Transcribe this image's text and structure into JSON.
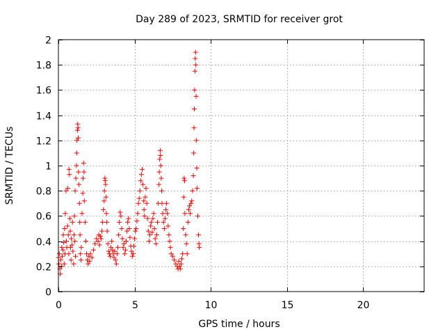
{
  "chart_data": {
    "type": "scatter",
    "title": "Day 289 of 2023, SRMTID for receiver grot",
    "xlabel": "GPS time / hours",
    "ylabel": "SRMTID / TECUs",
    "xlim": [
      0,
      24
    ],
    "ylim": [
      0,
      2
    ],
    "xticks": [
      0,
      5,
      10,
      15,
      20
    ],
    "yticks": [
      0,
      0.2,
      0.4,
      0.6,
      0.8,
      1,
      1.2,
      1.4,
      1.6,
      1.8,
      2
    ],
    "grid": true,
    "marker": "+",
    "series_color": "#ff0000",
    "series": [
      {
        "name": "SRMTID",
        "points": [
          [
            0.0,
            0.27
          ],
          [
            0.03,
            0.22
          ],
          [
            0.06,
            0.3
          ],
          [
            0.1,
            0.18
          ],
          [
            0.12,
            0.14
          ],
          [
            0.15,
            0.25
          ],
          [
            0.2,
            0.2
          ],
          [
            0.22,
            0.35
          ],
          [
            0.25,
            0.28
          ],
          [
            0.3,
            0.33
          ],
          [
            0.32,
            0.45
          ],
          [
            0.35,
            0.39
          ],
          [
            0.38,
            0.22
          ],
          [
            0.4,
            0.5
          ],
          [
            0.43,
            0.3
          ],
          [
            0.45,
            0.62
          ],
          [
            0.5,
            0.8
          ],
          [
            0.52,
            0.4
          ],
          [
            0.55,
            0.35
          ],
          [
            0.6,
            0.52
          ],
          [
            0.62,
            0.82
          ],
          [
            0.65,
            0.45
          ],
          [
            0.68,
            0.3
          ],
          [
            0.7,
            0.97
          ],
          [
            0.72,
            0.93
          ],
          [
            0.75,
            0.58
          ],
          [
            0.78,
            0.48
          ],
          [
            0.8,
            0.35
          ],
          [
            0.83,
            0.25
          ],
          [
            0.85,
            0.42
          ],
          [
            0.9,
            0.37
          ],
          [
            0.92,
            0.55
          ],
          [
            0.95,
            0.32
          ],
          [
            1.0,
            0.22
          ],
          [
            1.02,
            0.45
          ],
          [
            1.05,
            0.6
          ],
          [
            1.08,
            0.4
          ],
          [
            1.1,
            0.8
          ],
          [
            1.12,
            0.28
          ],
          [
            1.15,
            0.9
          ],
          [
            1.18,
            1.0
          ],
          [
            1.2,
            1.1
          ],
          [
            1.22,
            1.2
          ],
          [
            1.25,
            1.28
          ],
          [
            1.27,
            1.33
          ],
          [
            1.29,
            1.3
          ],
          [
            1.3,
            1.22
          ],
          [
            1.32,
            0.95
          ],
          [
            1.35,
            0.85
          ],
          [
            1.38,
            0.7
          ],
          [
            1.4,
            0.55
          ],
          [
            1.42,
            0.45
          ],
          [
            1.45,
            0.3
          ],
          [
            1.48,
            0.25
          ],
          [
            1.5,
            0.35
          ],
          [
            1.55,
            0.62
          ],
          [
            1.6,
            0.78
          ],
          [
            1.62,
            0.9
          ],
          [
            1.65,
            1.02
          ],
          [
            1.68,
            0.95
          ],
          [
            1.7,
            0.72
          ],
          [
            1.75,
            0.55
          ],
          [
            1.8,
            0.4
          ],
          [
            1.85,
            0.3
          ],
          [
            1.9,
            0.25
          ],
          [
            1.95,
            0.22
          ],
          [
            2.0,
            0.28
          ],
          [
            2.05,
            0.24
          ],
          [
            2.1,
            0.3
          ],
          [
            2.2,
            0.27
          ],
          [
            2.3,
            0.33
          ],
          [
            2.4,
            0.38
          ],
          [
            2.5,
            0.42
          ],
          [
            2.6,
            0.4
          ],
          [
            2.65,
            0.45
          ],
          [
            2.7,
            0.37
          ],
          [
            2.75,
            0.44
          ],
          [
            2.8,
            0.42
          ],
          [
            2.85,
            0.48
          ],
          [
            2.9,
            0.55
          ],
          [
            2.95,
            0.65
          ],
          [
            3.0,
            0.72
          ],
          [
            3.02,
            0.8
          ],
          [
            3.05,
            0.9
          ],
          [
            3.07,
            0.88
          ],
          [
            3.1,
            0.85
          ],
          [
            3.12,
            0.75
          ],
          [
            3.15,
            0.62
          ],
          [
            3.18,
            0.55
          ],
          [
            3.2,
            0.48
          ],
          [
            3.25,
            0.38
          ],
          [
            3.3,
            0.32
          ],
          [
            3.35,
            0.3
          ],
          [
            3.4,
            0.28
          ],
          [
            3.45,
            0.35
          ],
          [
            3.5,
            0.4
          ],
          [
            3.55,
            0.33
          ],
          [
            3.6,
            0.3
          ],
          [
            3.65,
            0.27
          ],
          [
            3.7,
            0.32
          ],
          [
            3.75,
            0.25
          ],
          [
            3.8,
            0.22
          ],
          [
            3.85,
            0.3
          ],
          [
            3.9,
            0.35
          ],
          [
            3.95,
            0.45
          ],
          [
            4.0,
            0.55
          ],
          [
            4.05,
            0.63
          ],
          [
            4.1,
            0.6
          ],
          [
            4.15,
            0.5
          ],
          [
            4.2,
            0.42
          ],
          [
            4.25,
            0.35
          ],
          [
            4.3,
            0.38
          ],
          [
            4.35,
            0.3
          ],
          [
            4.4,
            0.33
          ],
          [
            4.45,
            0.4
          ],
          [
            4.5,
            0.48
          ],
          [
            4.55,
            0.55
          ],
          [
            4.6,
            0.58
          ],
          [
            4.65,
            0.5
          ],
          [
            4.7,
            0.43
          ],
          [
            4.75,
            0.36
          ],
          [
            4.8,
            0.32
          ],
          [
            4.85,
            0.28
          ],
          [
            4.9,
            0.3
          ],
          [
            4.95,
            0.36
          ],
          [
            5.0,
            0.42
          ],
          [
            5.05,
            0.48
          ],
          [
            5.1,
            0.5
          ],
          [
            5.15,
            0.56
          ],
          [
            5.2,
            0.62
          ],
          [
            5.25,
            0.7
          ],
          [
            5.3,
            0.74
          ],
          [
            5.35,
            0.8
          ],
          [
            5.4,
            0.88
          ],
          [
            5.45,
            0.93
          ],
          [
            5.5,
            0.97
          ],
          [
            5.55,
            0.85
          ],
          [
            5.6,
            0.72
          ],
          [
            5.62,
            0.65
          ],
          [
            5.65,
            0.6
          ],
          [
            5.7,
            0.75
          ],
          [
            5.75,
            0.82
          ],
          [
            5.8,
            0.7
          ],
          [
            5.85,
            0.58
          ],
          [
            5.9,
            0.48
          ],
          [
            5.95,
            0.4
          ],
          [
            6.0,
            0.45
          ],
          [
            6.05,
            0.52
          ],
          [
            6.1,
            0.55
          ],
          [
            6.15,
            0.47
          ],
          [
            6.2,
            0.58
          ],
          [
            6.25,
            0.62
          ],
          [
            6.3,
            0.5
          ],
          [
            6.35,
            0.42
          ],
          [
            6.4,
            0.38
          ],
          [
            6.45,
            0.45
          ],
          [
            6.5,
            0.55
          ],
          [
            6.55,
            0.7
          ],
          [
            6.6,
            0.85
          ],
          [
            6.62,
            0.95
          ],
          [
            6.65,
            1.05
          ],
          [
            6.68,
            1.12
          ],
          [
            6.7,
            1.08
          ],
          [
            6.72,
            1.0
          ],
          [
            6.75,
            0.9
          ],
          [
            6.78,
            0.8
          ],
          [
            6.8,
            0.7
          ],
          [
            6.85,
            0.62
          ],
          [
            6.9,
            0.55
          ],
          [
            6.95,
            0.5
          ],
          [
            7.0,
            0.58
          ],
          [
            7.05,
            0.65
          ],
          [
            7.1,
            0.7
          ],
          [
            7.15,
            0.62
          ],
          [
            7.2,
            0.52
          ],
          [
            7.25,
            0.45
          ],
          [
            7.3,
            0.4
          ],
          [
            7.35,
            0.35
          ],
          [
            7.4,
            0.3
          ],
          [
            7.5,
            0.28
          ],
          [
            7.6,
            0.25
          ],
          [
            7.7,
            0.22
          ],
          [
            7.8,
            0.2
          ],
          [
            7.85,
            0.18
          ],
          [
            7.9,
            0.24
          ],
          [
            7.95,
            0.2
          ],
          [
            8.0,
            0.18
          ],
          [
            8.05,
            0.22
          ],
          [
            8.1,
            0.26
          ],
          [
            8.15,
            0.3
          ],
          [
            8.2,
            0.5
          ],
          [
            8.22,
            0.75
          ],
          [
            8.25,
            0.9
          ],
          [
            8.28,
            0.88
          ],
          [
            8.3,
            0.62
          ],
          [
            8.35,
            0.45
          ],
          [
            8.4,
            0.38
          ],
          [
            8.45,
            0.3
          ],
          [
            8.5,
            0.55
          ],
          [
            8.55,
            0.65
          ],
          [
            8.6,
            0.68
          ],
          [
            8.65,
            0.62
          ],
          [
            8.7,
            0.7
          ],
          [
            8.75,
            0.72
          ],
          [
            8.8,
            0.8
          ],
          [
            8.85,
            0.92
          ],
          [
            8.88,
            1.1
          ],
          [
            8.9,
            1.3
          ],
          [
            8.92,
            1.45
          ],
          [
            8.94,
            1.6
          ],
          [
            8.96,
            1.75
          ],
          [
            8.98,
            1.85
          ],
          [
            9.0,
            1.9
          ],
          [
            9.02,
            1.8
          ],
          [
            9.04,
            1.55
          ],
          [
            9.05,
            1.2
          ],
          [
            9.08,
            0.98
          ],
          [
            9.1,
            0.82
          ],
          [
            9.15,
            0.6
          ],
          [
            9.2,
            0.45
          ],
          [
            9.22,
            0.38
          ],
          [
            9.25,
            0.35
          ]
        ]
      }
    ]
  }
}
